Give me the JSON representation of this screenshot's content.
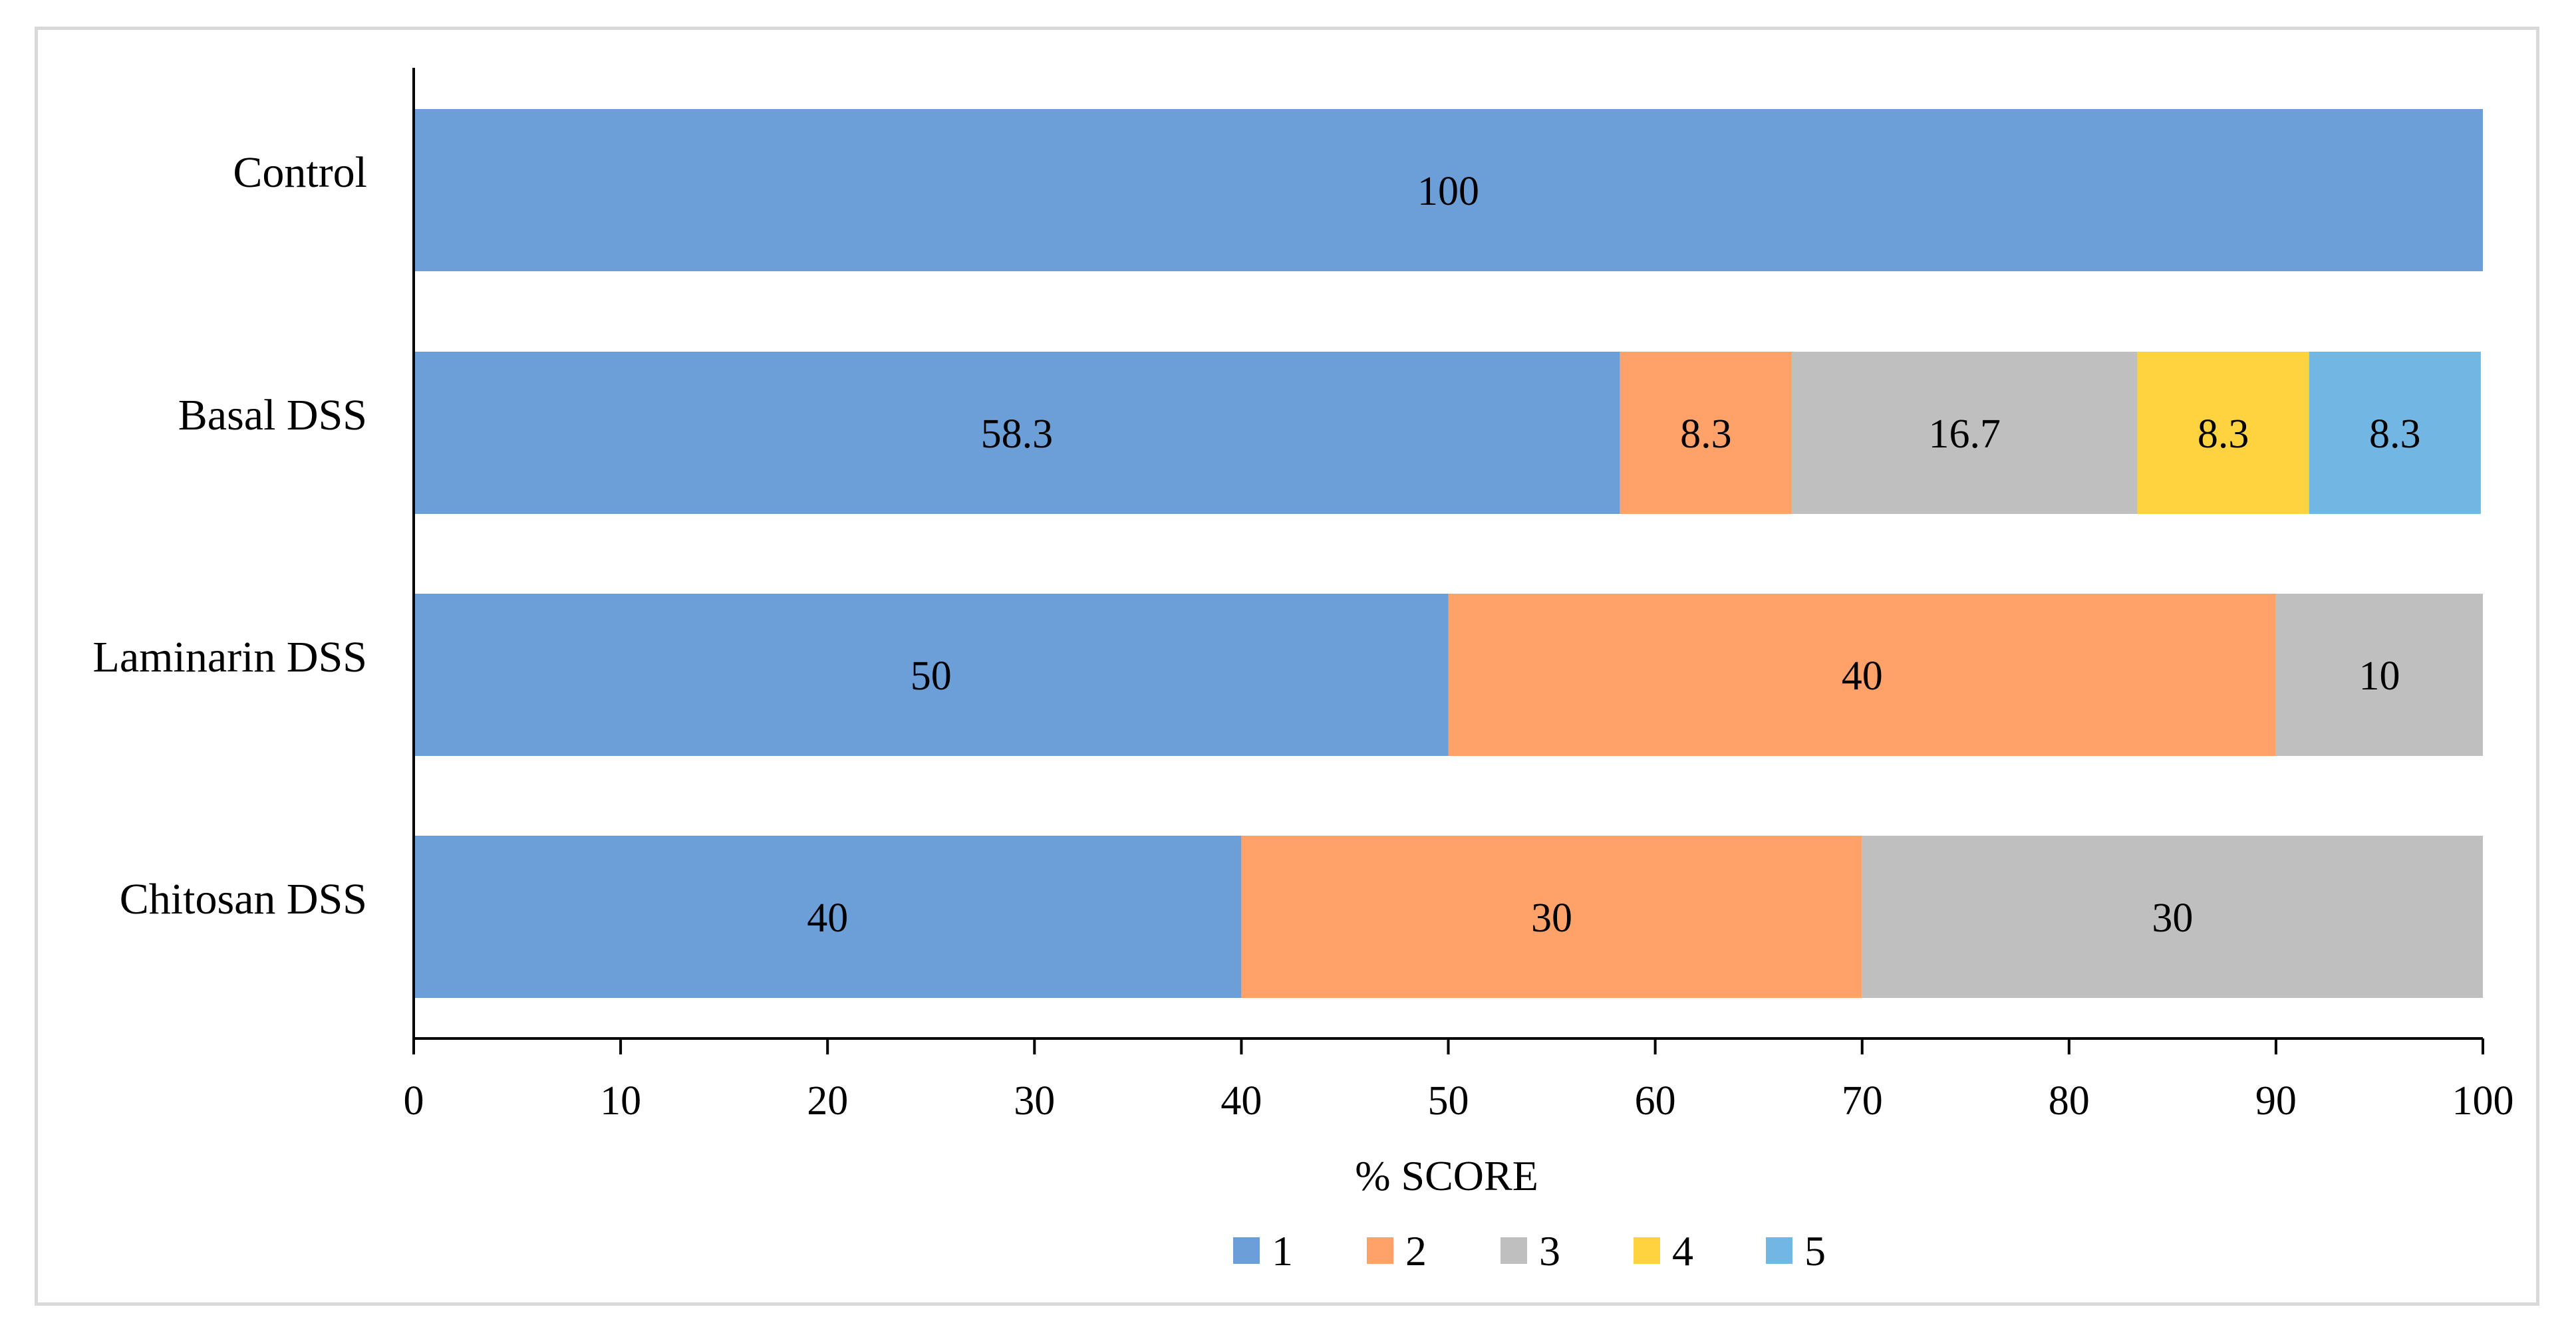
{
  "chart_data": {
    "type": "bar",
    "orientation": "horizontal",
    "stacked": true,
    "title": "",
    "xlabel": "% SCORE",
    "ylabel": "",
    "xlim": [
      0,
      100
    ],
    "x_ticks": [
      0,
      10,
      20,
      30,
      40,
      50,
      60,
      70,
      80,
      90,
      100
    ],
    "grid": false,
    "legend_position": "bottom",
    "categories": [
      "Control",
      "Basal DSS",
      "Laminarin DSS",
      "Chitosan DSS"
    ],
    "series": [
      {
        "name": "1",
        "color": "#6C9ED8",
        "values": [
          100,
          58.3,
          50,
          40
        ],
        "labels": [
          "100",
          "58.3",
          "50",
          "40"
        ]
      },
      {
        "name": "2",
        "color": "#FFA26A",
        "values": [
          0,
          8.3,
          40,
          30
        ],
        "labels": [
          "",
          "8.3",
          "40",
          "30"
        ]
      },
      {
        "name": "3",
        "color": "#BFBFBF",
        "values": [
          0,
          16.7,
          10,
          30
        ],
        "labels": [
          "",
          "16.7",
          "10",
          "30"
        ]
      },
      {
        "name": "4",
        "color": "#FFD23F",
        "values": [
          0,
          8.3,
          0,
          0
        ],
        "labels": [
          "",
          "8.3",
          "",
          ""
        ]
      },
      {
        "name": "5",
        "color": "#72B6E3",
        "values": [
          0,
          8.3,
          0,
          0
        ],
        "labels": [
          "",
          "8.3",
          "",
          ""
        ]
      }
    ]
  }
}
